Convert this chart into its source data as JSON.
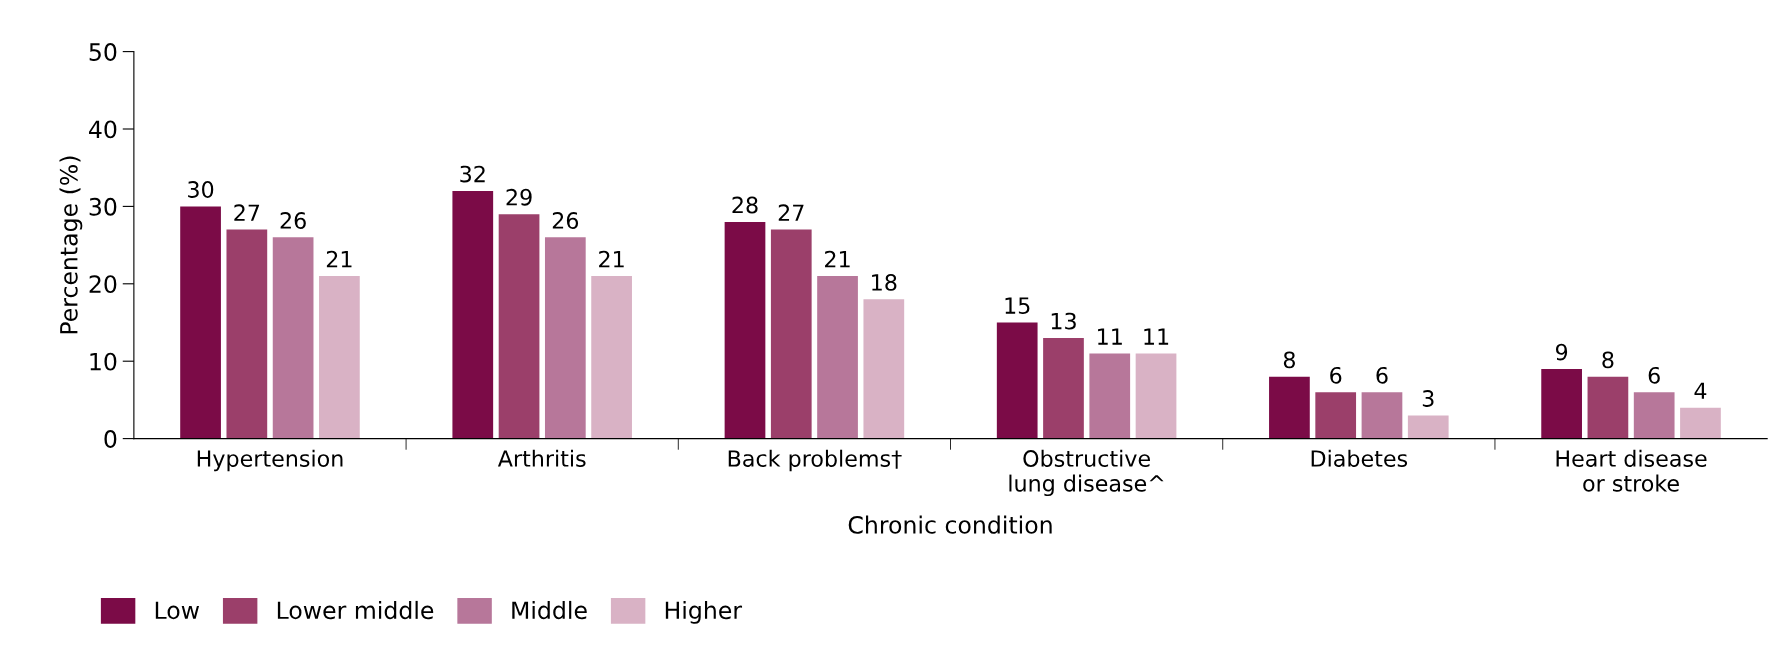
{
  "chart_data": {
    "type": "bar",
    "xlabel": "Chronic condition",
    "ylabel": "Percentage (%)",
    "categories": [
      "Hypertension",
      "Arthritis",
      "Back problems†",
      "Obstructive\nlung disease^",
      "Diabetes",
      "Heart disease\nor stroke"
    ],
    "series": [
      {
        "name": "Low",
        "color": "#7b0b47",
        "values": [
          30,
          32,
          28,
          15,
          8,
          9
        ]
      },
      {
        "name": "Lower middle",
        "color": "#9b3f6a",
        "values": [
          27,
          29,
          27,
          13,
          6,
          8
        ]
      },
      {
        "name": "Middle",
        "color": "#b7779a",
        "values": [
          26,
          26,
          21,
          11,
          6,
          6
        ]
      },
      {
        "name": "Higher",
        "color": "#d9b2c5",
        "values": [
          21,
          21,
          18,
          11,
          3,
          4
        ]
      }
    ],
    "ylim": [
      0,
      50
    ],
    "yticks": [
      0,
      10,
      20,
      30,
      40,
      50
    ],
    "grid": false,
    "legend": "bottom left",
    "data_labels": true
  }
}
